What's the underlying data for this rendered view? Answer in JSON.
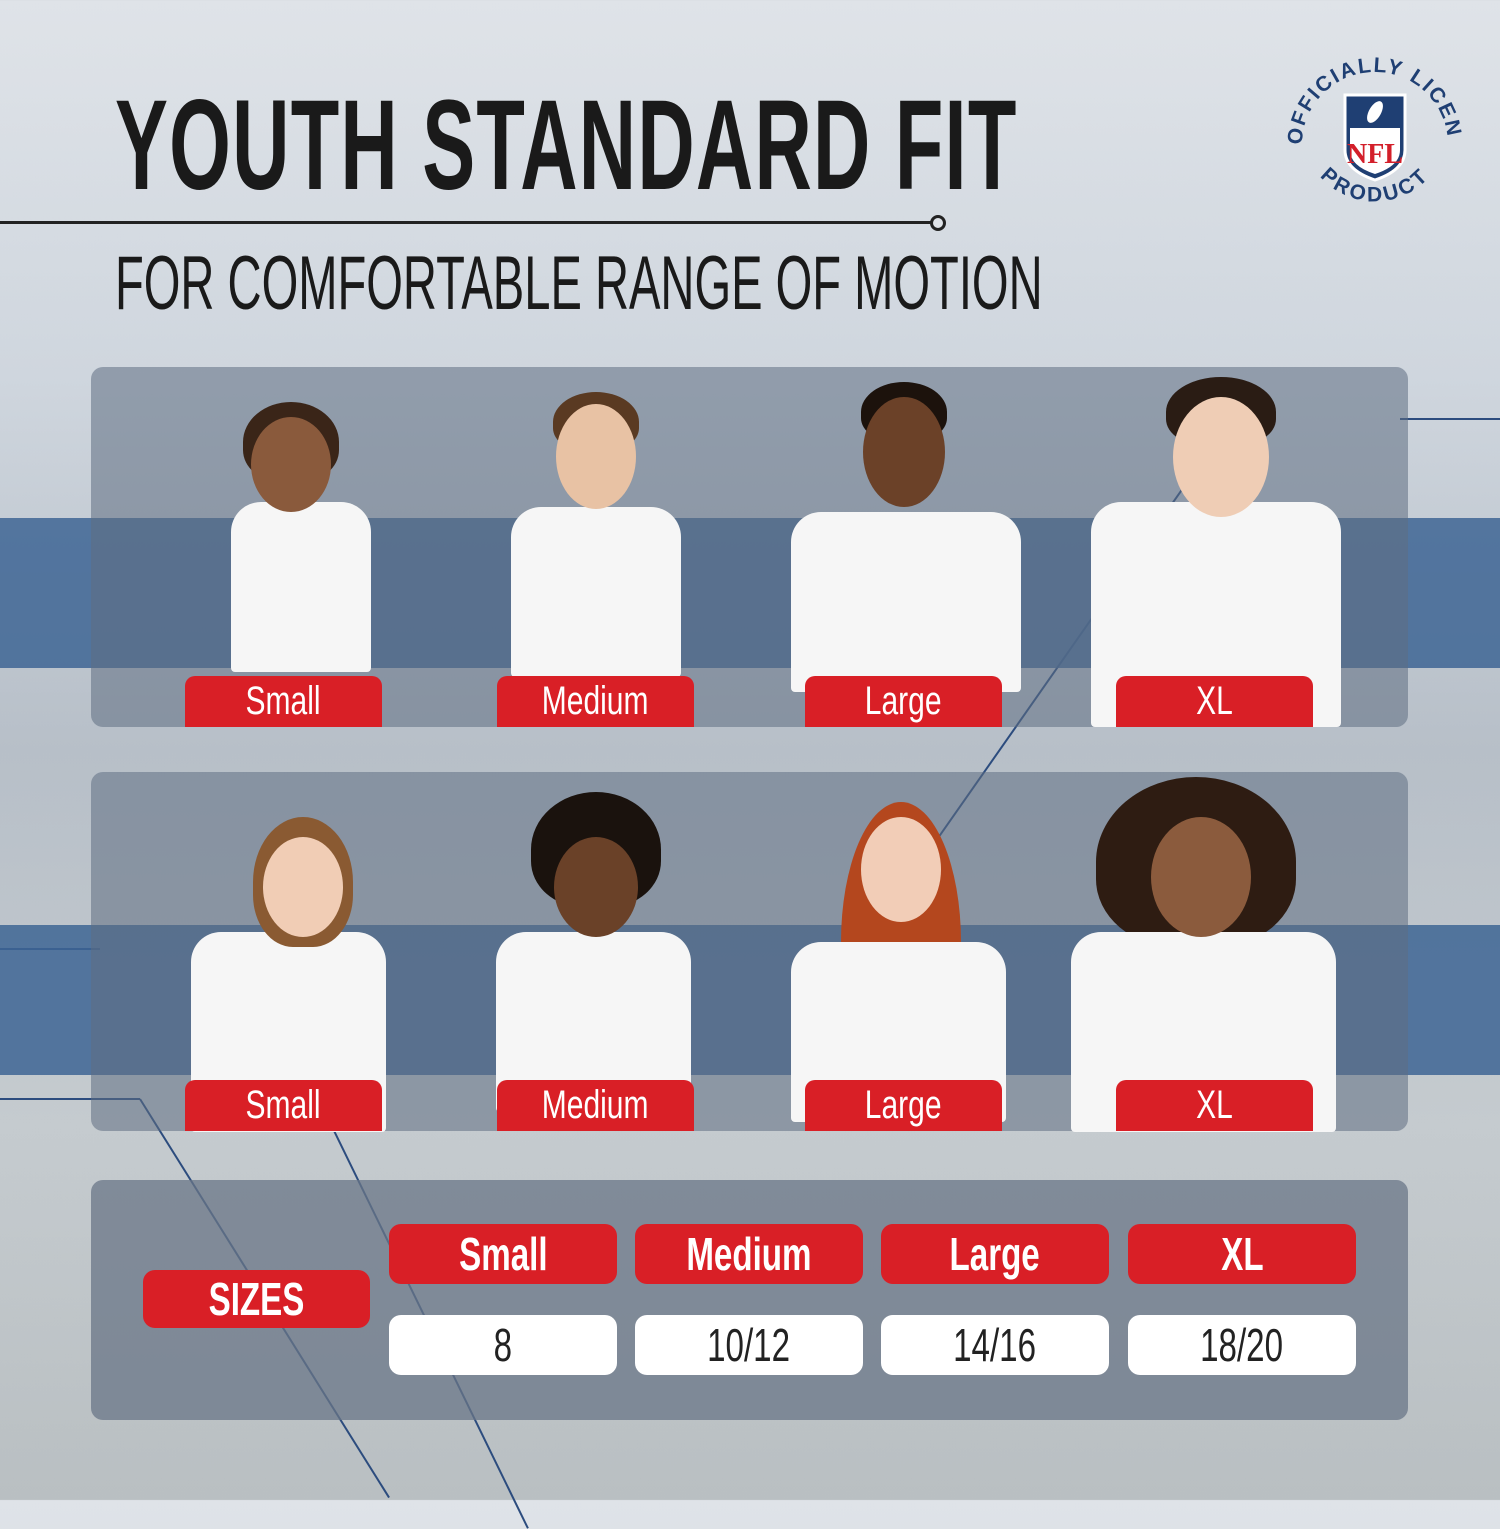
{
  "header": {
    "title": "YOUTH STANDARD FIT",
    "subtitle": "FOR COMFORTABLE RANGE OF MOTION"
  },
  "badge": {
    "text_top": "OFFICIALLY LICENSED",
    "text_bottom": "PRODUCT",
    "logo_text": "NFL",
    "colors": {
      "navy": "#1f3f73",
      "red": "#d31f2a"
    }
  },
  "boys_row": {
    "labels": [
      "Small",
      "Medium",
      "Large",
      "XL"
    ]
  },
  "girls_row": {
    "labels": [
      "Small",
      "Medium",
      "Large",
      "XL"
    ]
  },
  "size_table": {
    "row_label": "SIZES",
    "columns": [
      {
        "size": "Small",
        "value": "8"
      },
      {
        "size": "Medium",
        "value": "10/12"
      },
      {
        "size": "Large",
        "value": "14/16"
      },
      {
        "size": "XL",
        "value": "18/20"
      }
    ]
  },
  "colors": {
    "accent_red": "#d91f26",
    "band_blue": "#3e6594",
    "navy_line": "#2c4c7e"
  }
}
